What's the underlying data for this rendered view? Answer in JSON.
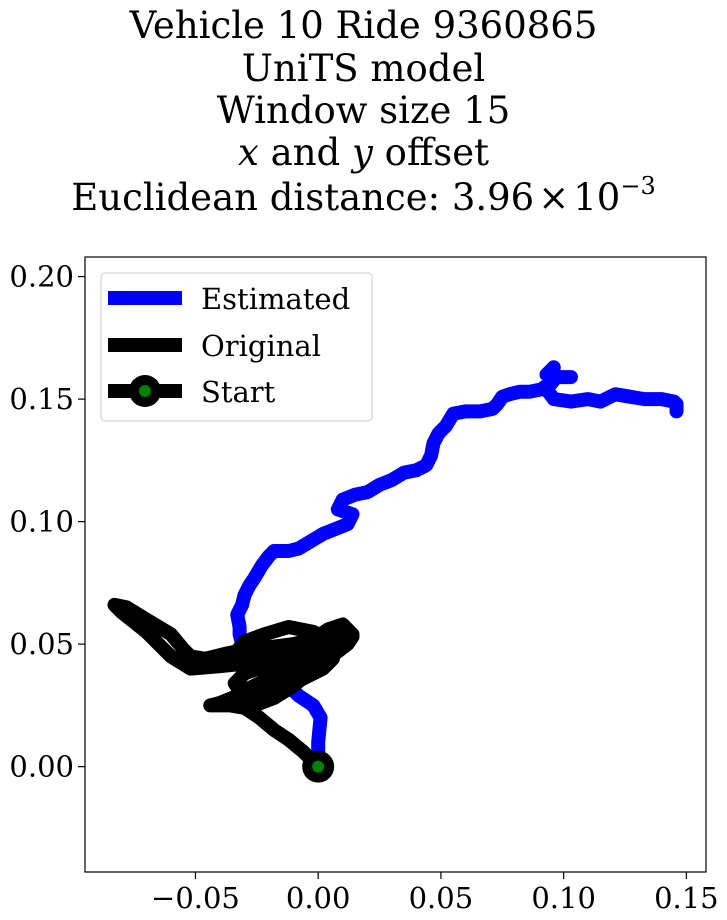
{
  "chart_data": {
    "type": "line",
    "title_lines": [
      "Vehicle 10 Ride 9360865",
      "UniTS model",
      "Window size 15",
      "x and y offset",
      "Euclidean distance: 3.96×10⁻³"
    ],
    "title_parts": {
      "line4_x": "x",
      "line4_and": " and ",
      "line4_y": "y",
      "line4_rest": " offset",
      "line5_prefix": "Euclidean distance: 3.96",
      "line5_times": "×",
      "line5_base": "10",
      "line5_exp": "−3"
    },
    "xlabel": "",
    "ylabel": "",
    "xlim": [
      -0.095,
      0.158
    ],
    "ylim": [
      -0.043,
      0.208
    ],
    "xticks": [
      -0.05,
      0.0,
      0.05,
      0.1,
      0.15
    ],
    "xtick_labels": [
      "−0.05",
      "0.00",
      "0.05",
      "0.10",
      "0.15"
    ],
    "yticks": [
      0.0,
      0.05,
      0.1,
      0.15,
      0.2
    ],
    "ytick_labels": [
      "0.00",
      "0.05",
      "0.10",
      "0.15",
      "0.20"
    ],
    "grid": false,
    "legend_position": "top-left",
    "colors": {
      "estimated": "#0000ff",
      "original": "#000000",
      "start_marker": "#008000"
    },
    "series": [
      {
        "name": "Estimated",
        "color": "#0000ff",
        "points": [
          [
            0.0,
            0.0
          ],
          [
            0.0,
            0.01
          ],
          [
            0.001,
            0.02
          ],
          [
            -0.002,
            0.025
          ],
          [
            -0.008,
            0.029
          ],
          [
            -0.012,
            0.033
          ],
          [
            -0.018,
            0.037
          ],
          [
            -0.024,
            0.04
          ],
          [
            -0.028,
            0.043
          ],
          [
            -0.03,
            0.046
          ],
          [
            -0.031,
            0.05
          ],
          [
            -0.032,
            0.054
          ],
          [
            -0.032,
            0.057
          ],
          [
            -0.033,
            0.062
          ],
          [
            -0.031,
            0.066
          ],
          [
            -0.03,
            0.07
          ],
          [
            -0.028,
            0.074
          ],
          [
            -0.026,
            0.077
          ],
          [
            -0.023,
            0.082
          ],
          [
            -0.02,
            0.086
          ],
          [
            -0.018,
            0.088
          ],
          [
            -0.012,
            0.088
          ],
          [
            -0.008,
            0.089
          ],
          [
            -0.003,
            0.092
          ],
          [
            0.002,
            0.095
          ],
          [
            0.007,
            0.097
          ],
          [
            0.012,
            0.099
          ],
          [
            0.014,
            0.103
          ],
          [
            0.008,
            0.105
          ],
          [
            0.01,
            0.109
          ],
          [
            0.015,
            0.111
          ],
          [
            0.02,
            0.112
          ],
          [
            0.025,
            0.115
          ],
          [
            0.03,
            0.117
          ],
          [
            0.035,
            0.12
          ],
          [
            0.04,
            0.121
          ],
          [
            0.044,
            0.123
          ],
          [
            0.046,
            0.127
          ],
          [
            0.047,
            0.132
          ],
          [
            0.049,
            0.136
          ],
          [
            0.052,
            0.139
          ],
          [
            0.055,
            0.144
          ],
          [
            0.06,
            0.145
          ],
          [
            0.066,
            0.145
          ],
          [
            0.071,
            0.146
          ],
          [
            0.073,
            0.148
          ],
          [
            0.075,
            0.151
          ],
          [
            0.078,
            0.152
          ],
          [
            0.082,
            0.153
          ],
          [
            0.086,
            0.153
          ],
          [
            0.091,
            0.154
          ],
          [
            0.095,
            0.157
          ],
          [
            0.096,
            0.163
          ],
          [
            0.093,
            0.16
          ],
          [
            0.096,
            0.159
          ],
          [
            0.103,
            0.159
          ],
          [
            0.097,
            0.159
          ],
          [
            0.093,
            0.154
          ],
          [
            0.096,
            0.15
          ],
          [
            0.103,
            0.149
          ],
          [
            0.11,
            0.15
          ],
          [
            0.115,
            0.149
          ],
          [
            0.121,
            0.152
          ],
          [
            0.127,
            0.151
          ],
          [
            0.133,
            0.15
          ],
          [
            0.14,
            0.15
          ],
          [
            0.145,
            0.149
          ],
          [
            0.146,
            0.148
          ],
          [
            0.146,
            0.145
          ]
        ]
      },
      {
        "name": "Original",
        "color": "#000000",
        "points": [
          [
            0.0,
            0.0
          ],
          [
            -0.006,
            0.006
          ],
          [
            -0.012,
            0.011
          ],
          [
            -0.018,
            0.015
          ],
          [
            -0.024,
            0.02
          ],
          [
            -0.03,
            0.024
          ],
          [
            -0.036,
            0.025
          ],
          [
            -0.044,
            0.025
          ],
          [
            -0.04,
            0.026
          ],
          [
            -0.03,
            0.03
          ],
          [
            -0.02,
            0.035
          ],
          [
            -0.01,
            0.04
          ],
          [
            -0.003,
            0.045
          ],
          [
            0.004,
            0.05
          ],
          [
            0.008,
            0.055
          ],
          [
            0.004,
            0.05
          ],
          [
            -0.004,
            0.045
          ],
          [
            -0.012,
            0.044
          ],
          [
            -0.02,
            0.043
          ],
          [
            -0.03,
            0.042
          ],
          [
            -0.04,
            0.041
          ],
          [
            -0.052,
            0.04
          ],
          [
            -0.06,
            0.045
          ],
          [
            -0.07,
            0.055
          ],
          [
            -0.08,
            0.063
          ],
          [
            -0.083,
            0.066
          ],
          [
            -0.078,
            0.065
          ],
          [
            -0.07,
            0.06
          ],
          [
            -0.06,
            0.054
          ],
          [
            -0.055,
            0.048
          ],
          [
            -0.052,
            0.045
          ],
          [
            -0.046,
            0.044
          ],
          [
            -0.038,
            0.046
          ],
          [
            -0.028,
            0.048
          ],
          [
            -0.018,
            0.049
          ],
          [
            -0.01,
            0.05
          ],
          [
            -0.002,
            0.052
          ],
          [
            0.004,
            0.056
          ],
          [
            0.01,
            0.058
          ],
          [
            0.014,
            0.054
          ],
          [
            0.008,
            0.05
          ],
          [
            0.0,
            0.048
          ],
          [
            -0.008,
            0.046
          ],
          [
            -0.016,
            0.045
          ],
          [
            -0.024,
            0.044
          ],
          [
            -0.03,
            0.043
          ],
          [
            -0.034,
            0.046
          ],
          [
            -0.03,
            0.051
          ],
          [
            -0.022,
            0.054
          ],
          [
            -0.012,
            0.057
          ],
          [
            -0.002,
            0.055
          ],
          [
            0.004,
            0.052
          ],
          [
            0.006,
            0.047
          ],
          [
            0.002,
            0.042
          ],
          [
            -0.006,
            0.04
          ],
          [
            -0.014,
            0.038
          ],
          [
            -0.022,
            0.035
          ],
          [
            -0.028,
            0.032
          ],
          [
            -0.032,
            0.031
          ],
          [
            -0.034,
            0.034
          ],
          [
            -0.03,
            0.038
          ],
          [
            -0.022,
            0.041
          ],
          [
            -0.014,
            0.042
          ],
          [
            -0.006,
            0.044
          ],
          [
            0.002,
            0.046
          ],
          [
            0.006,
            0.044
          ],
          [
            0.002,
            0.04
          ],
          [
            -0.006,
            0.036
          ],
          [
            -0.014,
            0.033
          ],
          [
            -0.022,
            0.03
          ],
          [
            -0.028,
            0.027
          ],
          [
            -0.026,
            0.025
          ],
          [
            -0.018,
            0.028
          ],
          [
            -0.01,
            0.033
          ],
          [
            -0.004,
            0.038
          ],
          [
            0.002,
            0.043
          ],
          [
            0.008,
            0.047
          ],
          [
            0.012,
            0.05
          ],
          [
            0.014,
            0.053
          ]
        ]
      }
    ],
    "start_point": {
      "name": "Start",
      "x": 0.0,
      "y": 0.0
    },
    "legend": [
      "Estimated",
      "Original",
      "Start"
    ]
  }
}
